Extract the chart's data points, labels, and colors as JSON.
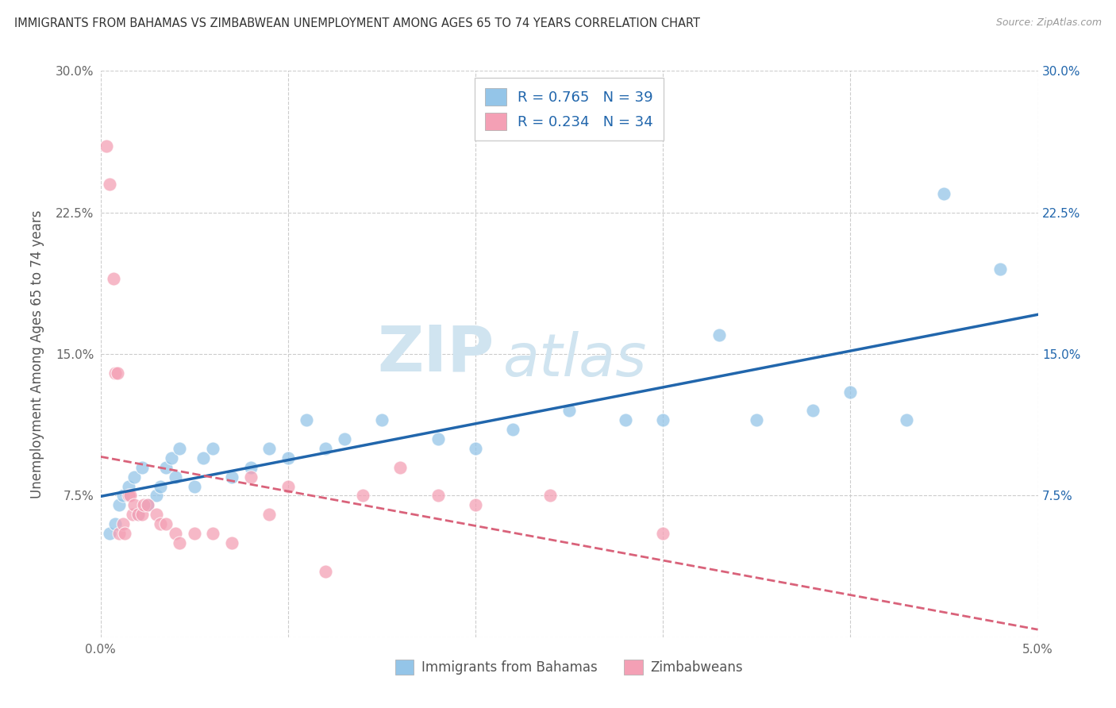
{
  "title": "IMMIGRANTS FROM BAHAMAS VS ZIMBABWEAN UNEMPLOYMENT AMONG AGES 65 TO 74 YEARS CORRELATION CHART",
  "source": "Source: ZipAtlas.com",
  "ylabel": "Unemployment Among Ages 65 to 74 years",
  "xlabel_blue": "Immigrants from Bahamas",
  "xlabel_pink": "Zimbabweans",
  "legend_blue_label": "R = 0.765   N = 39",
  "legend_pink_label": "R = 0.234   N = 34",
  "xlim": [
    0.0,
    0.05
  ],
  "ylim": [
    0.0,
    0.3
  ],
  "xticks": [
    0.0,
    0.01,
    0.02,
    0.03,
    0.04,
    0.05
  ],
  "yticks": [
    0.0,
    0.075,
    0.15,
    0.225,
    0.3
  ],
  "ytick_labels_left": [
    "",
    "7.5%",
    "15.0%",
    "22.5%",
    "30.0%"
  ],
  "ytick_labels_right": [
    "",
    "7.5%",
    "15.0%",
    "22.5%",
    "30.0%"
  ],
  "xtick_labels": [
    "0.0%",
    "",
    "",
    "",
    "",
    "5.0%"
  ],
  "blue_scatter": [
    [
      0.0005,
      0.055
    ],
    [
      0.0008,
      0.06
    ],
    [
      0.001,
      0.07
    ],
    [
      0.0012,
      0.075
    ],
    [
      0.0015,
      0.08
    ],
    [
      0.0018,
      0.085
    ],
    [
      0.002,
      0.065
    ],
    [
      0.0022,
      0.09
    ],
    [
      0.0025,
      0.07
    ],
    [
      0.003,
      0.075
    ],
    [
      0.0032,
      0.08
    ],
    [
      0.0035,
      0.09
    ],
    [
      0.0038,
      0.095
    ],
    [
      0.004,
      0.085
    ],
    [
      0.0042,
      0.1
    ],
    [
      0.005,
      0.08
    ],
    [
      0.0055,
      0.095
    ],
    [
      0.006,
      0.1
    ],
    [
      0.007,
      0.085
    ],
    [
      0.008,
      0.09
    ],
    [
      0.009,
      0.1
    ],
    [
      0.01,
      0.095
    ],
    [
      0.011,
      0.115
    ],
    [
      0.012,
      0.1
    ],
    [
      0.013,
      0.105
    ],
    [
      0.015,
      0.115
    ],
    [
      0.018,
      0.105
    ],
    [
      0.02,
      0.1
    ],
    [
      0.022,
      0.11
    ],
    [
      0.025,
      0.12
    ],
    [
      0.028,
      0.115
    ],
    [
      0.03,
      0.115
    ],
    [
      0.033,
      0.16
    ],
    [
      0.035,
      0.115
    ],
    [
      0.038,
      0.12
    ],
    [
      0.04,
      0.13
    ],
    [
      0.043,
      0.115
    ],
    [
      0.045,
      0.235
    ],
    [
      0.048,
      0.195
    ]
  ],
  "pink_scatter": [
    [
      0.0003,
      0.26
    ],
    [
      0.0005,
      0.24
    ],
    [
      0.0007,
      0.19
    ],
    [
      0.0008,
      0.14
    ],
    [
      0.0009,
      0.14
    ],
    [
      0.001,
      0.055
    ],
    [
      0.0012,
      0.06
    ],
    [
      0.0013,
      0.055
    ],
    [
      0.0015,
      0.075
    ],
    [
      0.0016,
      0.075
    ],
    [
      0.0017,
      0.065
    ],
    [
      0.0018,
      0.07
    ],
    [
      0.002,
      0.065
    ],
    [
      0.0022,
      0.065
    ],
    [
      0.0023,
      0.07
    ],
    [
      0.0025,
      0.07
    ],
    [
      0.003,
      0.065
    ],
    [
      0.0032,
      0.06
    ],
    [
      0.0035,
      0.06
    ],
    [
      0.004,
      0.055
    ],
    [
      0.0042,
      0.05
    ],
    [
      0.005,
      0.055
    ],
    [
      0.006,
      0.055
    ],
    [
      0.007,
      0.05
    ],
    [
      0.008,
      0.085
    ],
    [
      0.009,
      0.065
    ],
    [
      0.01,
      0.08
    ],
    [
      0.012,
      0.035
    ],
    [
      0.014,
      0.075
    ],
    [
      0.016,
      0.09
    ],
    [
      0.018,
      0.075
    ],
    [
      0.02,
      0.07
    ],
    [
      0.024,
      0.075
    ],
    [
      0.03,
      0.055
    ]
  ],
  "blue_color": "#94c5e8",
  "pink_color": "#f4a0b5",
  "blue_line_color": "#2166ac",
  "pink_line_color": "#d9627a",
  "background_color": "#ffffff",
  "grid_color": "#cccccc",
  "watermark_color": "#d0e4f0"
}
